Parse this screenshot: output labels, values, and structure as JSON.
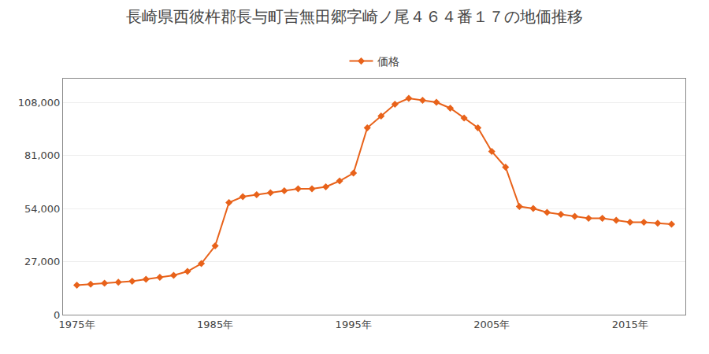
{
  "chart_data": {
    "type": "line",
    "title": "長崎県西彼杵郡長与町吉無田郷字崎ノ尾４６４番１７の地価推移",
    "x": [
      1975,
      1976,
      1977,
      1978,
      1979,
      1980,
      1981,
      1982,
      1983,
      1984,
      1985,
      1986,
      1987,
      1988,
      1989,
      1990,
      1991,
      1992,
      1993,
      1994,
      1995,
      1996,
      1997,
      1998,
      1999,
      2000,
      2001,
      2002,
      2003,
      2004,
      2005,
      2006,
      2007,
      2008,
      2009,
      2010,
      2011,
      2012,
      2013,
      2014,
      2015,
      2016,
      2017,
      2018
    ],
    "series": [
      {
        "name": "価格",
        "color": "#E8621A",
        "marker": "diamond",
        "line_style": "solid",
        "values": [
          15000,
          15500,
          16000,
          16500,
          17000,
          18000,
          19000,
          20000,
          22000,
          26000,
          35000,
          57000,
          60000,
          61000,
          62000,
          63000,
          64000,
          64000,
          65000,
          68000,
          72000,
          95000,
          101000,
          107000,
          110000,
          109000,
          108000,
          105000,
          100000,
          95000,
          83000,
          75000,
          55000,
          54000,
          52000,
          51000,
          50000,
          49000,
          49000,
          48000,
          47000,
          47000,
          46500,
          46000
        ]
      }
    ],
    "xlim": [
      1974,
      2019
    ],
    "xticks": [
      {
        "value": 1975,
        "label": "1975年"
      },
      {
        "value": 1985,
        "label": "1985年"
      },
      {
        "value": 1995,
        "label": "1995年"
      },
      {
        "value": 2005,
        "label": "2005年"
      },
      {
        "value": 2015,
        "label": "2015年"
      }
    ],
    "ylim": [
      0,
      120000
    ],
    "yticks": [
      0,
      {
        "value": 27000,
        "label": "27,000"
      },
      {
        "value": 54000,
        "label": "54,000"
      },
      {
        "value": 81000,
        "label": "81,000"
      },
      {
        "value": 108000,
        "label": "108,000"
      }
    ],
    "grid": "y",
    "legend": "top"
  }
}
